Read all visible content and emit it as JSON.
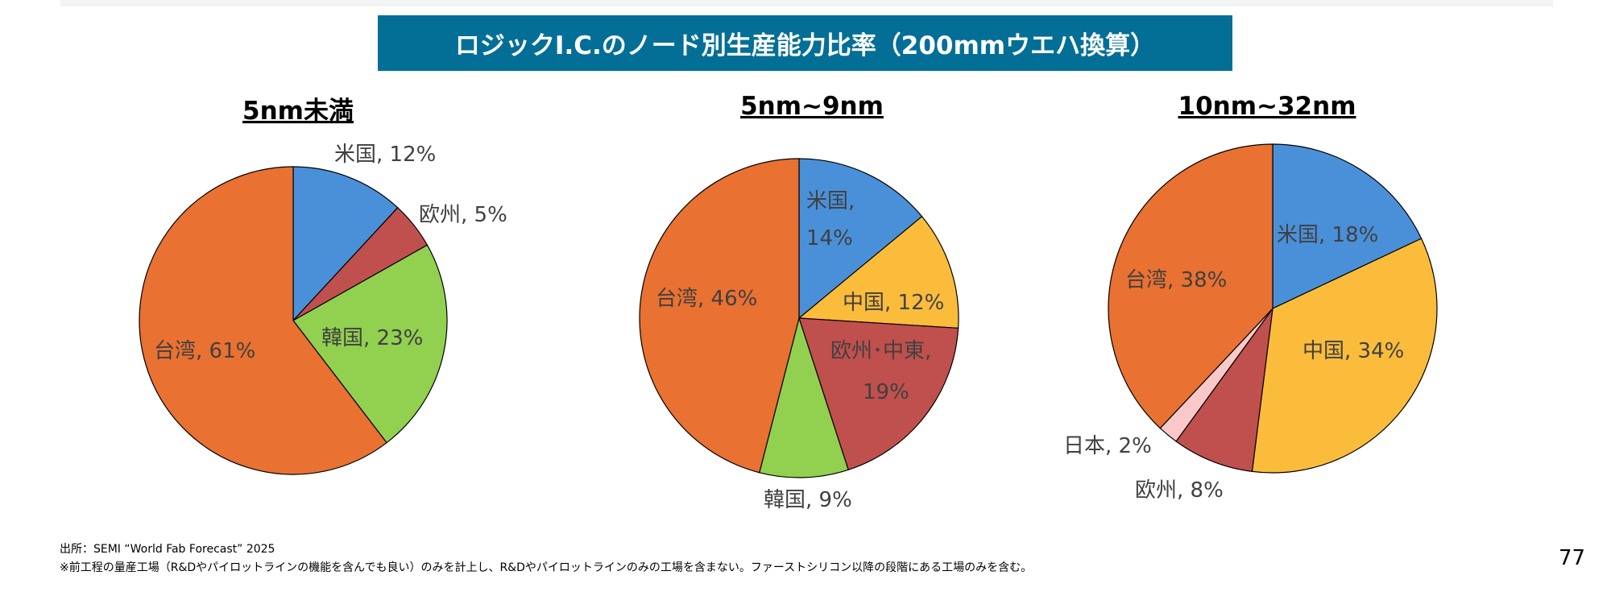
{
  "title": "ロジックI.C.のノード別生産能力比率（200mmウエハ換算）",
  "chart_data": [
    {
      "type": "pie",
      "title": "5nm未満",
      "start": "12 o'clock, clockwise",
      "slices": [
        {
          "label": "米国, 12%",
          "value": 12,
          "color": "#4a90d9"
        },
        {
          "label": "欧州, 5%",
          "value": 5,
          "color": "#c0504d"
        },
        {
          "label": "韓国, 23%",
          "value": 23,
          "color": "#92d050"
        },
        {
          "label": "台湾, 61%",
          "value": 61,
          "color": "#e97132"
        }
      ]
    },
    {
      "type": "pie",
      "title": "5nm~9nm",
      "start": "12 o'clock, clockwise",
      "slices": [
        {
          "label": "米国,",
          "label2": "14%",
          "value": 14,
          "color": "#4a90d9"
        },
        {
          "label": "中国, 12%",
          "value": 12,
          "color": "#fbbc3c"
        },
        {
          "label": "欧州･中東,",
          "label2": "19%",
          "value": 19,
          "color": "#c0504d"
        },
        {
          "label": "韓国, 9%",
          "value": 9,
          "color": "#92d050"
        },
        {
          "label": "台湾, 46%",
          "value": 46,
          "color": "#e97132"
        }
      ]
    },
    {
      "type": "pie",
      "title": "10nm~32nm",
      "start": "12 o'clock, clockwise",
      "slices": [
        {
          "label": "米国, 18%",
          "value": 18,
          "color": "#4a90d9"
        },
        {
          "label": "中国, 34%",
          "value": 34,
          "color": "#fbbc3c"
        },
        {
          "label": "欧州, 8%",
          "value": 8,
          "color": "#c0504d"
        },
        {
          "label": "日本, 2%",
          "value": 2,
          "color": "#f9c9c9"
        },
        {
          "label": "台湾, 38%",
          "value": 38,
          "color": "#e97132"
        }
      ]
    }
  ],
  "footer": {
    "source": "出所：SEMI “World Fab Forecast” 2025",
    "note": "※前工程の量産工場（R&Dやパイロットラインの機能を含んでも良い）のみを計上し、R&Dやパイロットラインのみの工場を含まない。ファーストシリコン以降の段階にある工場のみを含む。"
  },
  "page_number": "77"
}
